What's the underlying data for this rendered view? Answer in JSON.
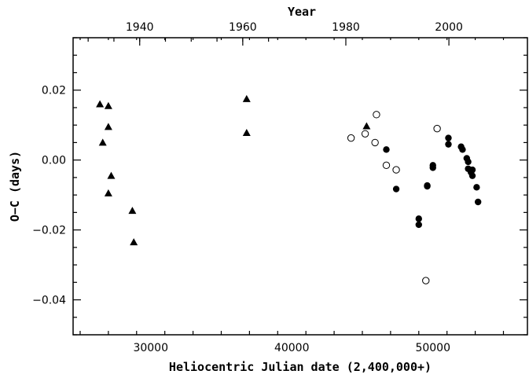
{
  "chart_data": {
    "type": "scatter",
    "xlabel": "Heliocentric Julian date (2,400,000+)",
    "ylabel": "O−C (days)",
    "x2label": "Year",
    "xlim": [
      24500,
      56700
    ],
    "ylim": [
      -0.05,
      0.035
    ],
    "x_ticks": [
      30000,
      40000,
      50000
    ],
    "x_tick_labels": [
      "30000",
      "40000",
      "50000"
    ],
    "y_ticks": [
      -0.04,
      -0.02,
      0.0,
      0.02
    ],
    "y_tick_labels": [
      "−0.04",
      "−0.02",
      "0.00",
      "0.02"
    ],
    "top_ticks_jd": [
      29220,
      36525,
      43830,
      51135
    ],
    "top_tick_labels": [
      "1940",
      "1960",
      "1980",
      "2000"
    ],
    "grid": false,
    "series": [
      {
        "marker": "filled-triangle",
        "color": "#000000",
        "points": [
          [
            26400,
            0.016
          ],
          [
            27000,
            0.0155
          ],
          [
            27000,
            0.0095
          ],
          [
            26600,
            0.005
          ],
          [
            27200,
            -0.0045
          ],
          [
            27000,
            -0.0095
          ],
          [
            28700,
            -0.0145
          ],
          [
            28800,
            -0.0235
          ],
          [
            36800,
            0.0175
          ],
          [
            36800,
            0.0078
          ],
          [
            45300,
            0.0097
          ]
        ]
      },
      {
        "marker": "open-circle",
        "color": "#000000",
        "points": [
          [
            44200,
            0.0063
          ],
          [
            45200,
            0.0075
          ],
          [
            46000,
            0.013
          ],
          [
            45900,
            0.005
          ],
          [
            46700,
            -0.0015
          ],
          [
            47400,
            -0.0028
          ],
          [
            50300,
            0.009
          ],
          [
            49500,
            -0.0345
          ]
        ]
      },
      {
        "marker": "filled-circle",
        "color": "#000000",
        "points": [
          [
            46700,
            0.003
          ],
          [
            47400,
            -0.0083
          ],
          [
            49000,
            -0.0168
          ],
          [
            49000,
            -0.0185
          ],
          [
            49600,
            -0.0073
          ],
          [
            49600,
            -0.0075
          ],
          [
            50000,
            -0.0015
          ],
          [
            50000,
            -0.0022
          ],
          [
            51100,
            0.0063
          ],
          [
            51100,
            0.0045
          ],
          [
            52000,
            0.0038
          ],
          [
            52100,
            0.003
          ],
          [
            52400,
            0.0005
          ],
          [
            52500,
            -0.0005
          ],
          [
            52500,
            -0.0025
          ],
          [
            52700,
            -0.0035
          ],
          [
            52800,
            -0.0045
          ],
          [
            52800,
            -0.0028
          ],
          [
            53100,
            -0.0078
          ],
          [
            53200,
            -0.012
          ]
        ]
      }
    ]
  }
}
